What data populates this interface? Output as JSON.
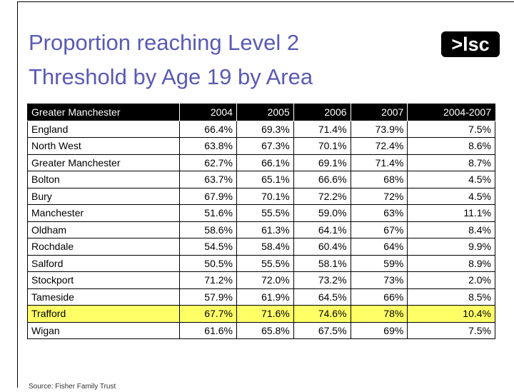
{
  "header": {
    "title_line1": "Proportion reaching Level 2",
    "title_line2": "Threshold by Age 19 by Area",
    "logo": ">lsc"
  },
  "table": {
    "header": [
      "Greater Manchester",
      "2004",
      "2005",
      "2006",
      "2007",
      "2004-2007"
    ],
    "rows": [
      [
        "England",
        "66.4%",
        "69.3%",
        "71.4%",
        "73.9%",
        "7.5%"
      ],
      [
        "North West",
        "63.8%",
        "67.3%",
        "70.1%",
        "72.4%",
        "8.6%"
      ],
      [
        "Greater Manchester",
        "62.7%",
        "66.1%",
        "69.1%",
        "71.4%",
        "8.7%"
      ],
      [
        "Bolton",
        "63.7%",
        "65.1%",
        "66.6%",
        "68%",
        "4.5%"
      ],
      [
        "Bury",
        "67.9%",
        "70.1%",
        "72.2%",
        "72%",
        "4.5%"
      ],
      [
        "Manchester",
        "51.6%",
        "55.5%",
        "59.0%",
        "63%",
        "11.1%"
      ],
      [
        "Oldham",
        "58.6%",
        "61.3%",
        "64.1%",
        "67%",
        "8.4%"
      ],
      [
        "Rochdale",
        "54.5%",
        "58.4%",
        "60.4%",
        "64%",
        "9.9%"
      ],
      [
        "Salford",
        "50.5%",
        "55.5%",
        "58.1%",
        "59%",
        "8.9%"
      ],
      [
        "Stockport",
        "71.2%",
        "72.0%",
        "73.2%",
        "73%",
        "2.0%"
      ],
      [
        "Tameside",
        "57.9%",
        "61.9%",
        "64.5%",
        "66%",
        "8.5%"
      ],
      [
        "Trafford",
        "67.7%",
        "71.6%",
        "74.6%",
        "78%",
        "10.4%"
      ],
      [
        "Wigan",
        "61.6%",
        "65.8%",
        "67.5%",
        "69%",
        "7.5%"
      ]
    ]
  },
  "footer": {
    "source": "Source: Fisher Family Trust"
  }
}
